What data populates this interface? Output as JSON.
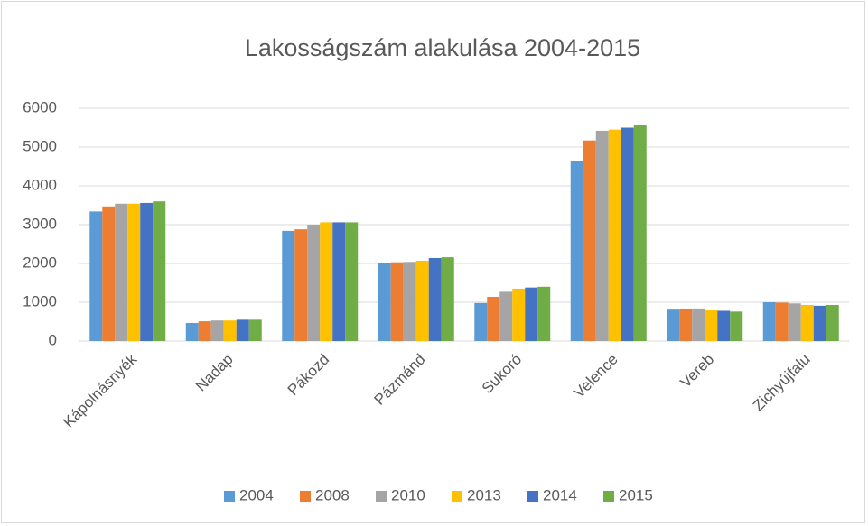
{
  "chart_data": {
    "type": "bar",
    "title": "Lakosságszám alakulása 2004-2015",
    "categories": [
      "Kápolnásnyék",
      "Nadap",
      "Pákozd",
      "Pázmánd",
      "Sukoró",
      "Velence",
      "Vereb",
      "Zichyújfalu"
    ],
    "series": [
      {
        "name": "2004",
        "color": "#5b9bd5",
        "values": [
          3340,
          465,
          2840,
          2020,
          980,
          4650,
          810,
          1000
        ]
      },
      {
        "name": "2008",
        "color": "#ed7d31",
        "values": [
          3470,
          510,
          2880,
          2030,
          1140,
          5170,
          820,
          990
        ]
      },
      {
        "name": "2010",
        "color": "#a5a5a5",
        "values": [
          3540,
          530,
          3000,
          2040,
          1270,
          5420,
          840,
          970
        ]
      },
      {
        "name": "2013",
        "color": "#ffc000",
        "values": [
          3540,
          530,
          3060,
          2070,
          1350,
          5450,
          790,
          930
        ]
      },
      {
        "name": "2014",
        "color": "#4472c4",
        "values": [
          3560,
          550,
          3060,
          2140,
          1380,
          5500,
          780,
          910
        ]
      },
      {
        "name": "2015",
        "color": "#70ad47",
        "values": [
          3600,
          550,
          3060,
          2160,
          1400,
          5570,
          760,
          930
        ]
      }
    ],
    "ylim": [
      0,
      6000
    ],
    "yticks": [
      0,
      1000,
      2000,
      3000,
      4000,
      5000,
      6000
    ],
    "grid": true,
    "legend": "bottom"
  }
}
